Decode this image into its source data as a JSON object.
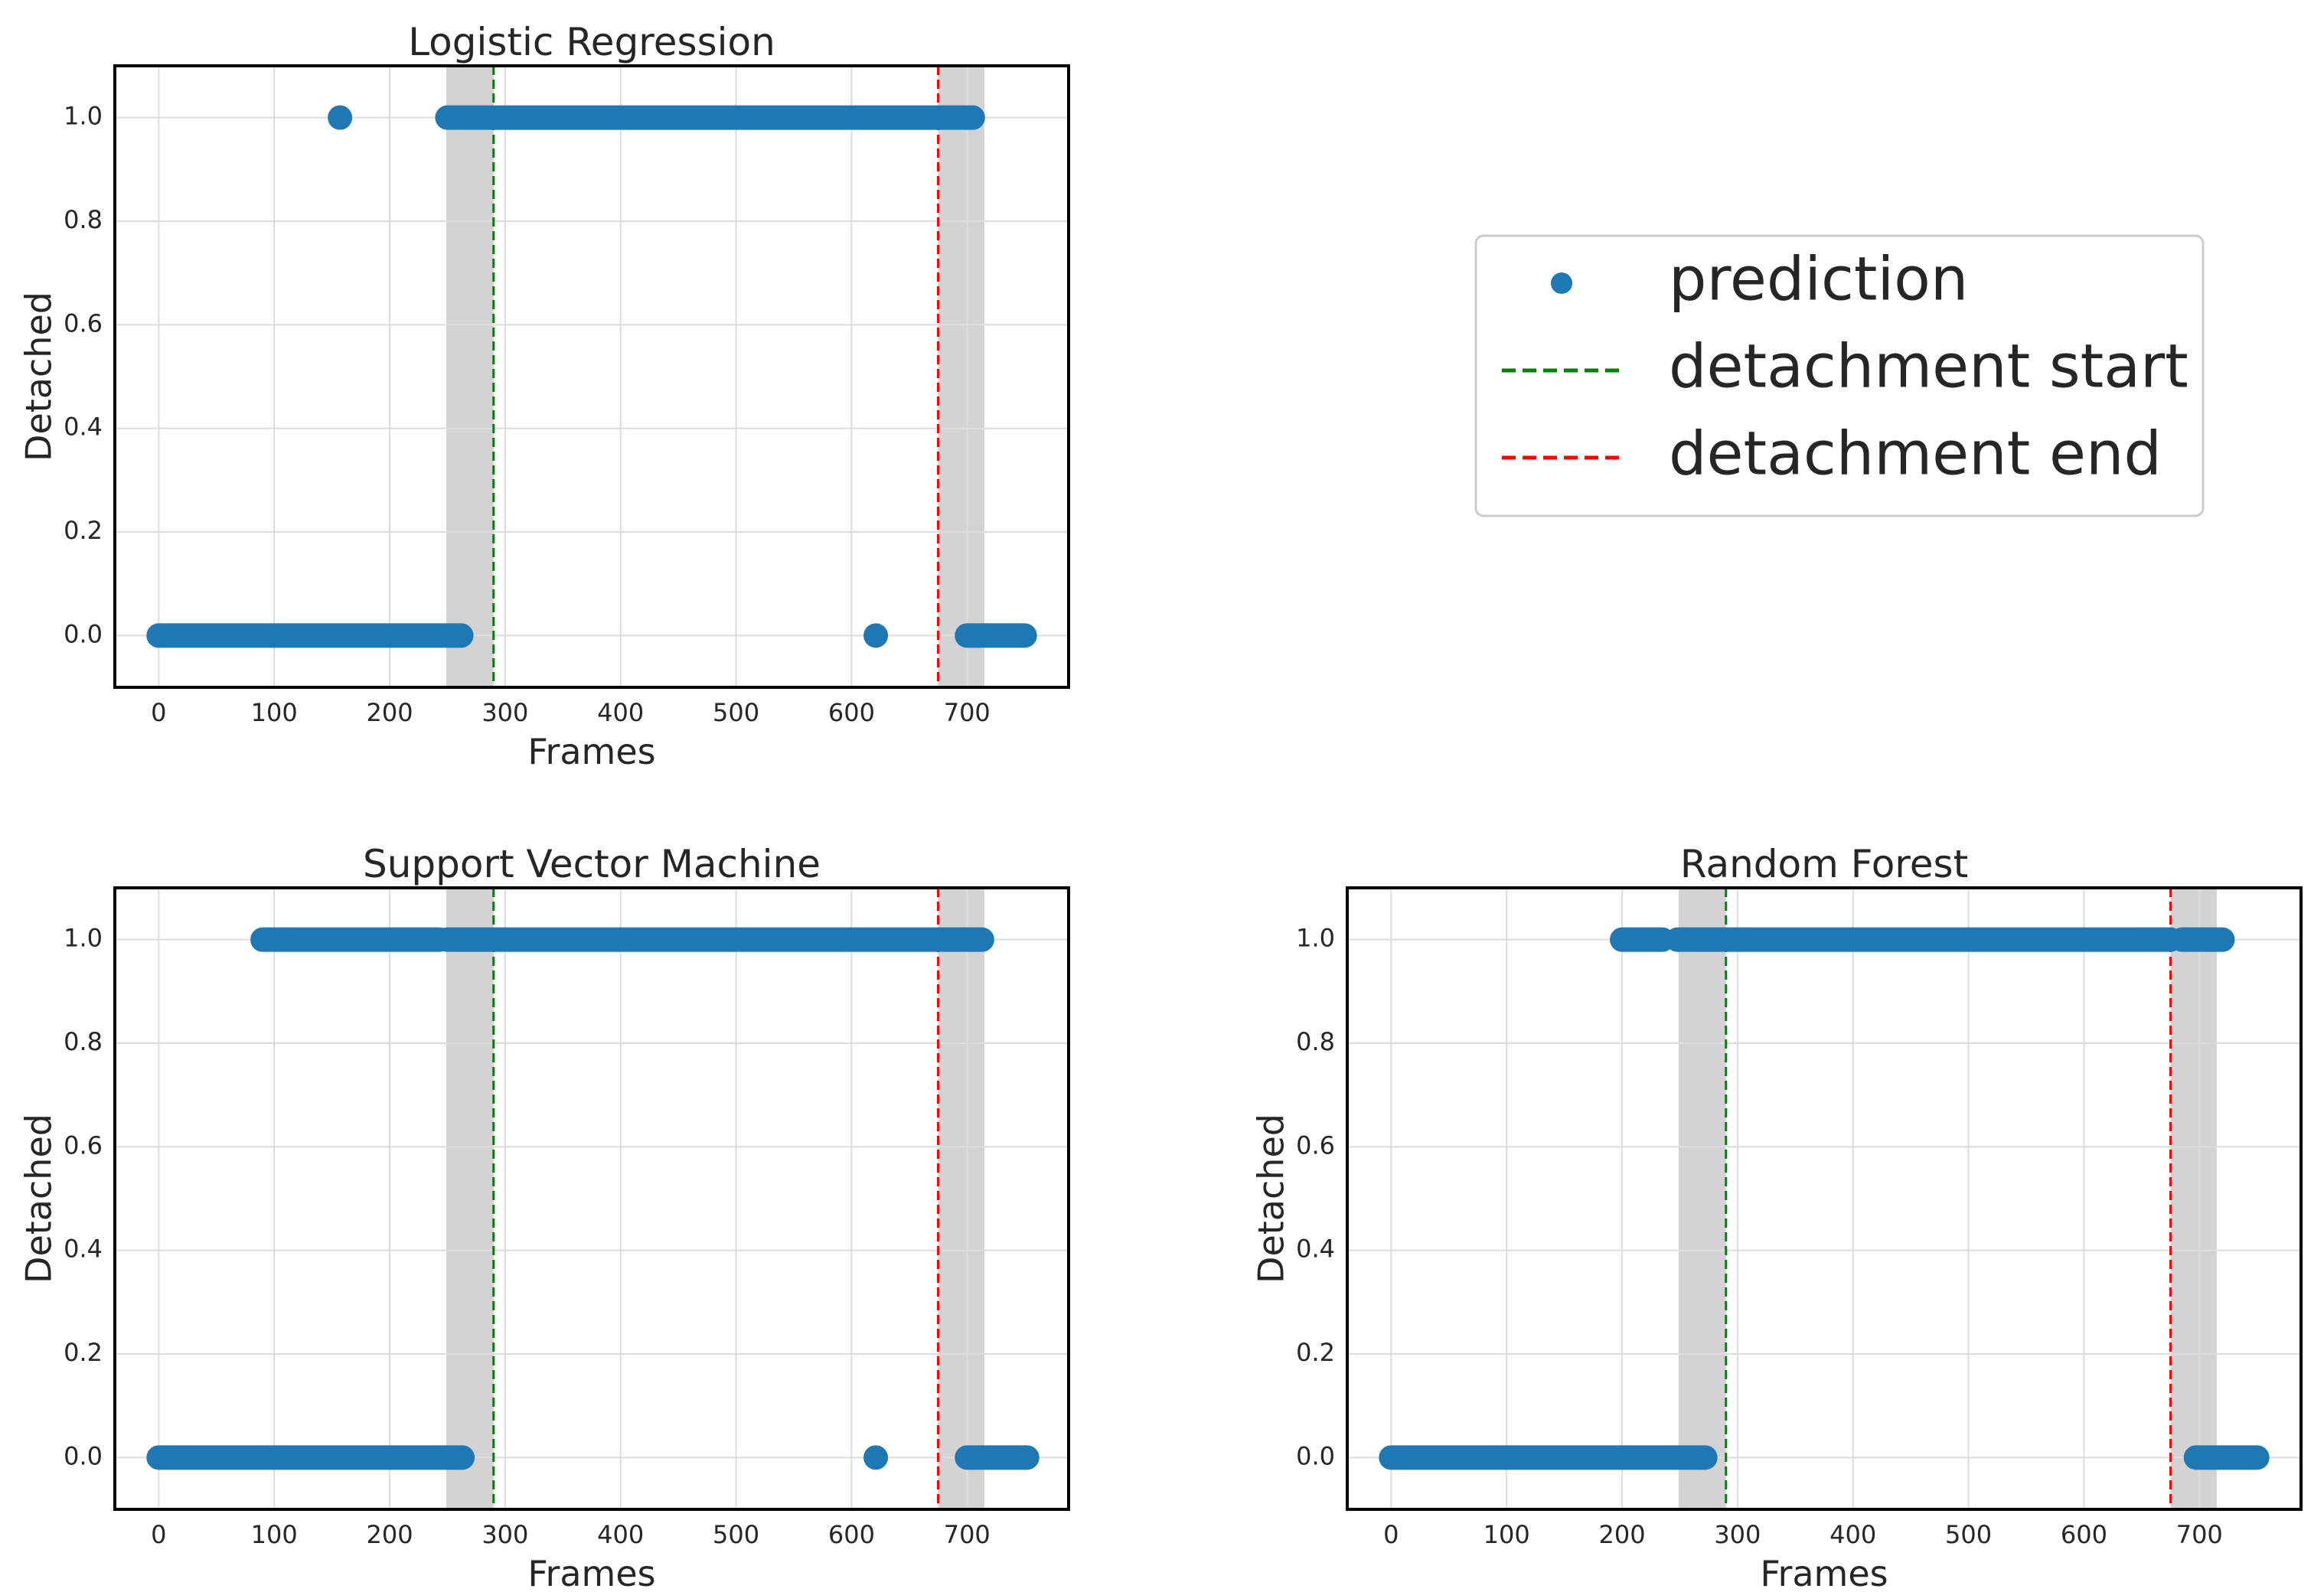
{
  "colors": {
    "prediction": "#1f77b4",
    "detachment_start": "#008000",
    "detachment_end": "#ff0000",
    "shade": "#d3d3d3",
    "grid": "#dddddd",
    "axes": "#000000",
    "text": "#262626"
  },
  "legend": {
    "prediction": "prediction",
    "detachment_start": "detachment start",
    "detachment_end": "detachment end"
  },
  "chart_data": [
    {
      "type": "scatter",
      "title": "Logistic Regression",
      "xlabel": "Frames",
      "ylabel": "Detached",
      "xlim": [
        -38,
        788
      ],
      "ylim": [
        -0.1,
        1.1
      ],
      "xticks": [
        0,
        100,
        200,
        300,
        400,
        500,
        600,
        700
      ],
      "yticks": [
        0.0,
        0.2,
        0.4,
        0.6,
        0.8,
        1.0
      ],
      "grid": true,
      "detachment_start": 290,
      "detachment_end": 675,
      "shaded_regions": [
        [
          249,
          290
        ],
        [
          675,
          715
        ]
      ],
      "series": [
        {
          "name": "prediction",
          "segments": [
            {
              "x_start": 0,
              "x_end": 262,
              "y": 0
            },
            {
              "x_start": 157,
              "x_end": 157,
              "y": 1
            },
            {
              "x_start": 250,
              "x_end": 705,
              "y": 1
            },
            {
              "x_start": 621,
              "x_end": 621,
              "y": 0
            },
            {
              "x_start": 700,
              "x_end": 750,
              "y": 0
            }
          ]
        }
      ]
    },
    {
      "type": "scatter",
      "title": "Support Vector Machine",
      "xlabel": "Frames",
      "ylabel": "Detached",
      "xlim": [
        -38,
        788
      ],
      "ylim": [
        -0.1,
        1.1
      ],
      "xticks": [
        0,
        100,
        200,
        300,
        400,
        500,
        600,
        700
      ],
      "yticks": [
        0.0,
        0.2,
        0.4,
        0.6,
        0.8,
        1.0
      ],
      "grid": true,
      "detachment_start": 290,
      "detachment_end": 675,
      "shaded_regions": [
        [
          249,
          290
        ],
        [
          675,
          715
        ]
      ],
      "series": [
        {
          "name": "prediction",
          "segments": [
            {
              "x_start": 0,
              "x_end": 263,
              "y": 0
            },
            {
              "x_start": 90,
              "x_end": 243,
              "y": 1
            },
            {
              "x_start": 250,
              "x_end": 713,
              "y": 1
            },
            {
              "x_start": 621,
              "x_end": 621,
              "y": 0
            },
            {
              "x_start": 700,
              "x_end": 752,
              "y": 0
            }
          ]
        }
      ]
    },
    {
      "type": "scatter",
      "title": "Random Forest",
      "xlabel": "Frames",
      "ylabel": "Detached",
      "xlim": [
        -38,
        788
      ],
      "ylim": [
        -0.1,
        1.1
      ],
      "xticks": [
        0,
        100,
        200,
        300,
        400,
        500,
        600,
        700
      ],
      "yticks": [
        0.0,
        0.2,
        0.4,
        0.6,
        0.8,
        1.0
      ],
      "grid": true,
      "detachment_start": 290,
      "detachment_end": 675,
      "shaded_regions": [
        [
          249,
          290
        ],
        [
          675,
          715
        ]
      ],
      "series": [
        {
          "name": "prediction",
          "segments": [
            {
              "x_start": 0,
              "x_end": 272,
              "y": 0
            },
            {
              "x_start": 200,
              "x_end": 235,
              "y": 1
            },
            {
              "x_start": 248,
              "x_end": 675,
              "y": 1
            },
            {
              "x_start": 685,
              "x_end": 720,
              "y": 1
            },
            {
              "x_start": 697,
              "x_end": 750,
              "y": 0
            }
          ]
        }
      ]
    }
  ]
}
